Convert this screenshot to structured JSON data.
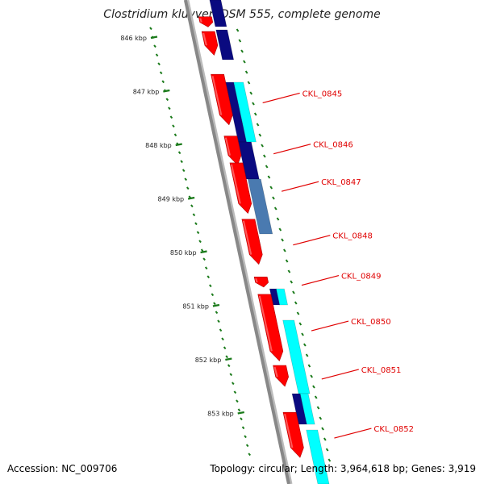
{
  "title": "Clostridium kluyveri DSM 555, complete genome",
  "footer": {
    "accession": "Accession: NC_009706",
    "summary": "Topology: circular; Length: 3,964,618 bp; Genes: 3,919"
  },
  "colors": {
    "cds": "#ff0000",
    "ruler": "#1a7a1a",
    "backbone": "#888888",
    "label": "#e00000",
    "navy": "#0a0a80",
    "cyan": "#00ffff",
    "steel": "#4a7ab0"
  },
  "scale": {
    "ticks_kbp": [
      {
        "pos": 846,
        "label": "846 kbp"
      },
      {
        "pos": 847,
        "label": "847 kbp"
      },
      {
        "pos": 848,
        "label": "848 kbp"
      },
      {
        "pos": 849,
        "label": "849 kbp"
      },
      {
        "pos": 850,
        "label": "850 kbp"
      },
      {
        "pos": 851,
        "label": "851 kbp"
      },
      {
        "pos": 852,
        "label": "852 kbp"
      },
      {
        "pos": 853,
        "label": "853 kbp"
      }
    ]
  },
  "genes": [
    {
      "pos": 845.7,
      "label": "",
      "strand": "reverse",
      "length": 0.25
    },
    {
      "pos": 846.1,
      "label": "",
      "strand": "reverse",
      "length": 0.5
    },
    {
      "pos": 847.15,
      "label": "CKL_0845",
      "strand": "reverse",
      "length": 1.0
    },
    {
      "pos": 848.1,
      "label": "CKL_0846",
      "strand": "reverse",
      "length": 0.6
    },
    {
      "pos": 848.8,
      "label": "CKL_0847",
      "strand": "reverse",
      "length": 1.0
    },
    {
      "pos": 849.8,
      "label": "CKL_0848",
      "strand": "reverse",
      "length": 0.9
    },
    {
      "pos": 850.55,
      "label": "CKL_0849",
      "strand": "reverse",
      "length": 0.25
    },
    {
      "pos": 851.4,
      "label": "CKL_0850",
      "strand": "reverse",
      "length": 1.3
    },
    {
      "pos": 852.3,
      "label": "CKL_0851",
      "strand": "reverse",
      "length": 0.45
    },
    {
      "pos": 853.4,
      "label": "CKL_0852",
      "strand": "reverse",
      "length": 0.9
    }
  ]
}
